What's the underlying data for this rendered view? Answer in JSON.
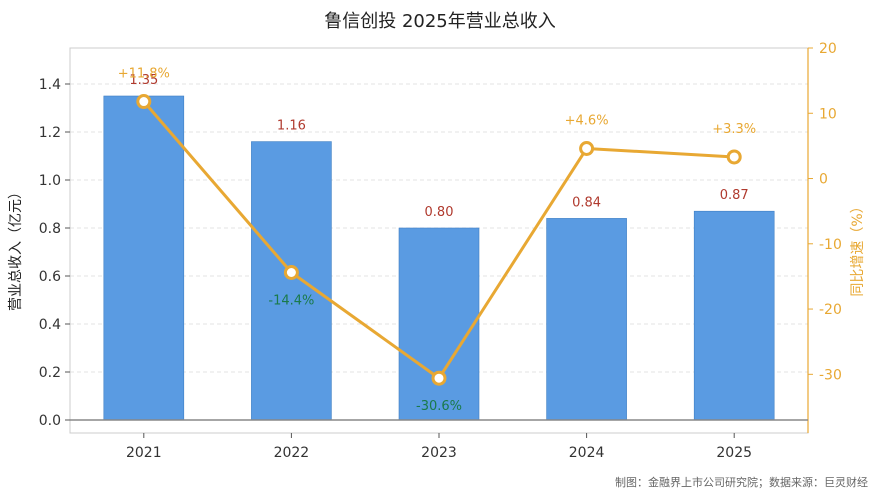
{
  "chart_data": {
    "type": "bar",
    "title": "鲁信创投 2025年营业总收入",
    "categories": [
      "2021",
      "2022",
      "2023",
      "2024",
      "2025"
    ],
    "series": [
      {
        "values": [
          1.35,
          1.16,
          0.8,
          0.84,
          0.87
        ],
        "labels": [
          "1.35",
          "1.16",
          "0.80",
          "0.84",
          "0.87"
        ],
        "color": "#5a9be2"
      },
      {
        "type": "line",
        "axis": "right",
        "values": [
          11.8,
          -14.4,
          -30.6,
          4.6,
          3.3
        ],
        "labels": [
          "+11.8%",
          "-14.4%",
          "-30.6%",
          "+4.6%",
          "+3.3%"
        ],
        "color": "#e8a833"
      }
    ],
    "ylabel": "营业总收入（亿元）",
    "ylabel_right": "同比增速（%）",
    "ylim": [
      0,
      1.55
    ],
    "ylim_right": [
      -37,
      20
    ],
    "yticks": [
      "0.0",
      "0.2",
      "0.4",
      "0.6",
      "0.8",
      "1.0",
      "1.2",
      "1.4"
    ],
    "yticks_right": [
      "-30",
      "-20",
      "-10",
      "0",
      "10",
      "20"
    ],
    "grid": true,
    "colors": {
      "bar_label": "#b03a2e",
      "positive_growth": "#e8a833",
      "negative_growth": "#1a7a4a",
      "right_axis": "#e8a833"
    }
  },
  "footer": {
    "source": "制图：金融界上市公司研究院；数据来源：巨灵财经"
  }
}
